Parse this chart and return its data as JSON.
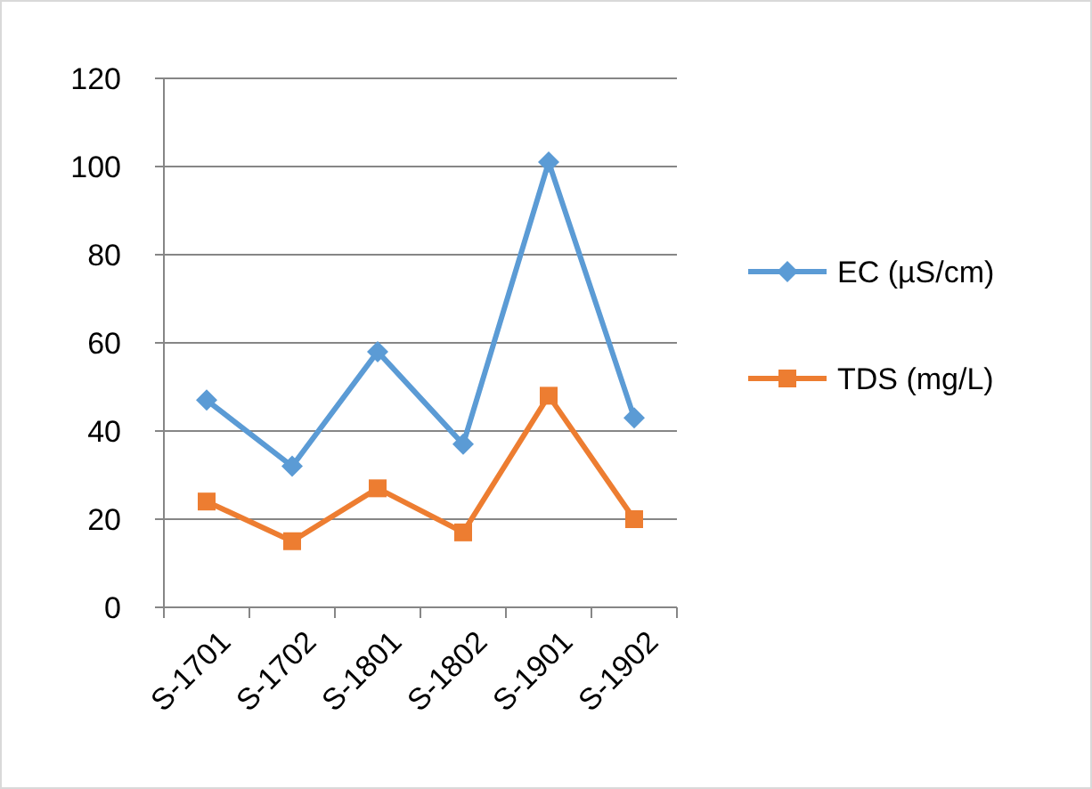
{
  "chart_data": {
    "type": "line",
    "categories": [
      "S-1701",
      "S-1702",
      "S-1801",
      "S-1802",
      "S-1901",
      "S-1902"
    ],
    "series": [
      {
        "name": "EC (µS/cm)",
        "color": "#5b9bd5",
        "marker": "diamond",
        "values": [
          47,
          32,
          58,
          37,
          101,
          43
        ]
      },
      {
        "name": "TDS (mg/L)",
        "color": "#ed7d31",
        "marker": "square",
        "values": [
          24,
          15,
          27,
          17,
          48,
          20
        ]
      }
    ],
    "ylim": [
      0,
      120
    ],
    "yticks": [
      0,
      20,
      40,
      60,
      80,
      100,
      120
    ],
    "grid": "y",
    "legend": "right"
  }
}
